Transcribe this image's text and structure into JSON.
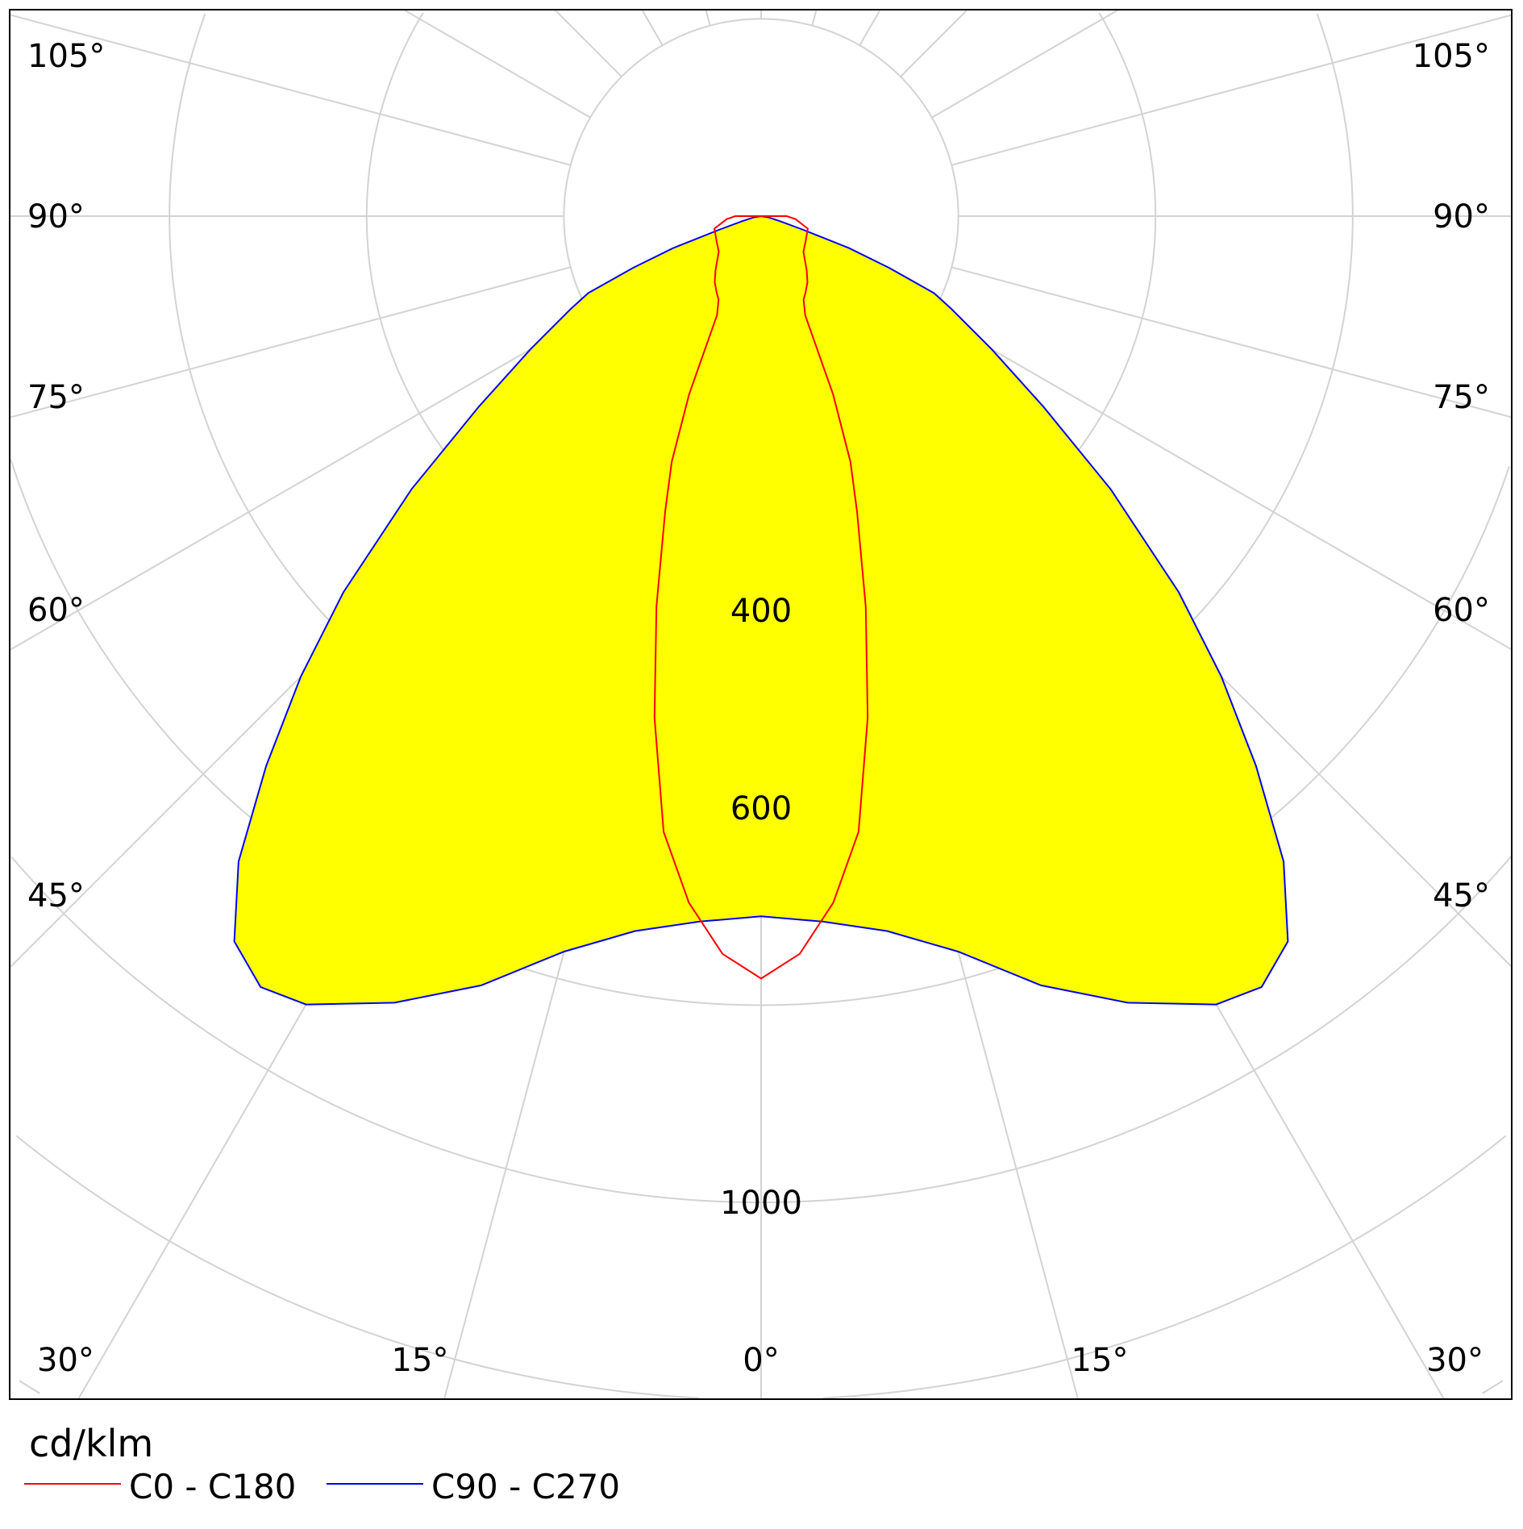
{
  "chart_data": {
    "type": "polar-line",
    "unit_label": "cd/klm",
    "radial_ticks": [
      400,
      600,
      1000
    ],
    "radial_grid_step": 200,
    "angle_ticks_left": [
      "105°",
      "90°",
      "75°",
      "60°",
      "45°",
      "30°"
    ],
    "angle_ticks_right": [
      "105°",
      "90°",
      "75°",
      "60°",
      "45°",
      "30°"
    ],
    "angle_ticks_bottom": [
      "15°",
      "0°",
      "15°"
    ],
    "angular_grid_step_deg": 15,
    "grid": true,
    "legend_position": "bottom-left",
    "series": [
      {
        "name": "C0 - C180",
        "color": "#ff0000",
        "filled": false,
        "angles": [
          0,
          3,
          6,
          9,
          12,
          15,
          18,
          20,
          22,
          24,
          27,
          30,
          35,
          40,
          50,
          60,
          75,
          85,
          90
        ],
        "values": [
          773,
          749,
          700,
          632,
          520,
          410,
          315,
          265,
          195,
          110,
          95,
          90,
          82,
          72,
          56,
          52,
          49,
          35,
          26
        ]
      },
      {
        "name": "C90 - C270",
        "color": "#0000ff",
        "fill": "#ffff00",
        "filled": true,
        "angles": [
          0,
          5,
          10,
          15,
          20,
          25,
          30,
          33,
          36,
          39,
          42,
          45,
          48,
          52,
          56,
          60,
          64,
          66,
          68,
          70,
          72,
          75,
          80,
          90
        ],
        "values": [
          710,
          718,
          736,
          772,
          830,
          880,
          923,
          932,
          909,
          842,
          750,
          660,
          570,
          450,
          345,
          270,
          215,
          192,
          140,
          95,
          45,
          20,
          8,
          0
        ]
      }
    ]
  }
}
